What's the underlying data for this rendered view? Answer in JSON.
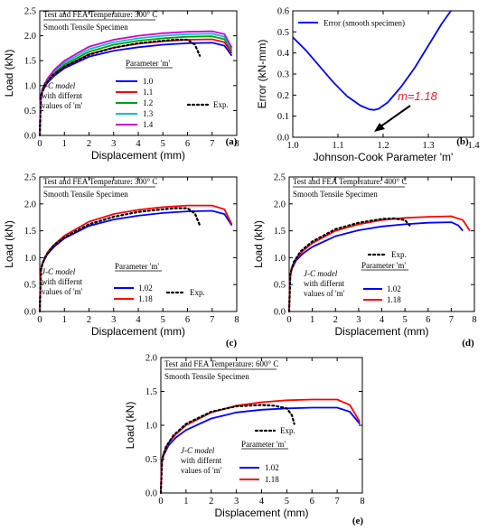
{
  "chart_data": [
    {
      "id": "a",
      "type": "line",
      "panel_label": "(a)",
      "xlabel": "Displacement (mm)",
      "ylabel": "Load (kN)",
      "xlim": [
        0,
        8
      ],
      "ylim": [
        0,
        2.5
      ],
      "xticks": [
        "0",
        "1",
        "2",
        "3",
        "4",
        "5",
        "6",
        "7",
        "8"
      ],
      "yticks": [
        "0.0",
        "0.5",
        "1.0",
        "1.5",
        "2.0",
        "2.5"
      ],
      "annotation_title": "Test and FEA Temperature: 300° C",
      "annotation_sub": "Smooth Tensile Specimen",
      "model_note": [
        "J-C model",
        "with differnt",
        "values of 'm'"
      ],
      "legend_title": "Parameter 'm'",
      "series": [
        {
          "name": "1.0",
          "color": "#0000ff",
          "x": [
            0,
            0.03,
            0.1,
            0.3,
            0.6,
            1,
            2,
            3,
            4,
            5,
            6,
            7,
            7.5,
            7.8
          ],
          "y": [
            0,
            0.7,
            0.88,
            1.05,
            1.2,
            1.35,
            1.58,
            1.7,
            1.77,
            1.82,
            1.85,
            1.86,
            1.8,
            1.6
          ]
        },
        {
          "name": "1.1",
          "color": "#ff0000",
          "x": [
            0,
            0.03,
            0.1,
            0.3,
            0.6,
            1,
            2,
            3,
            4,
            5,
            6,
            7,
            7.5,
            7.8
          ],
          "y": [
            0,
            0.7,
            0.89,
            1.07,
            1.23,
            1.38,
            1.63,
            1.76,
            1.84,
            1.89,
            1.92,
            1.93,
            1.87,
            1.65
          ]
        },
        {
          "name": "1.2",
          "color": "#00a000",
          "x": [
            0,
            0.03,
            0.1,
            0.3,
            0.6,
            1,
            2,
            3,
            4,
            5,
            6,
            7,
            7.5,
            7.8
          ],
          "y": [
            0,
            0.7,
            0.9,
            1.09,
            1.26,
            1.42,
            1.68,
            1.82,
            1.9,
            1.95,
            1.98,
            1.99,
            1.93,
            1.7
          ]
        },
        {
          "name": "1.3",
          "color": "#00c0d0",
          "x": [
            0,
            0.03,
            0.1,
            0.3,
            0.6,
            1,
            2,
            3,
            4,
            5,
            6,
            7,
            7.5,
            7.8
          ],
          "y": [
            0,
            0.7,
            0.91,
            1.11,
            1.29,
            1.46,
            1.73,
            1.87,
            1.95,
            2.0,
            2.03,
            2.04,
            1.98,
            1.73
          ]
        },
        {
          "name": "1.4",
          "color": "#d000d0",
          "x": [
            0,
            0.03,
            0.1,
            0.3,
            0.6,
            1,
            2,
            3,
            4,
            5,
            6,
            7,
            7.5,
            7.8
          ],
          "y": [
            0,
            0.7,
            0.92,
            1.13,
            1.32,
            1.5,
            1.78,
            1.92,
            2.0,
            2.05,
            2.08,
            2.09,
            2.03,
            1.76
          ]
        },
        {
          "name": "Exp.",
          "color": "#000000",
          "dashed": true,
          "x": [
            0,
            0.05,
            0.2,
            0.5,
            1,
            2,
            3,
            4,
            5,
            5.5,
            6,
            6.3,
            6.5
          ],
          "y": [
            0,
            0.8,
            1.0,
            1.2,
            1.38,
            1.62,
            1.76,
            1.85,
            1.9,
            1.92,
            1.92,
            1.82,
            1.6
          ]
        }
      ]
    },
    {
      "id": "b",
      "type": "line",
      "panel_label": "(b)",
      "xlabel": "Johnson-Cook Parameter 'm'",
      "ylabel": "Error (kN-mm)",
      "xlim": [
        1.0,
        1.4
      ],
      "ylim": [
        0,
        0.6
      ],
      "xticks": [
        "1.0",
        "1.1",
        "1.2",
        "1.3",
        "1.4"
      ],
      "yticks": [
        "0.0",
        "0.1",
        "0.2",
        "0.3",
        "0.4",
        "0.5",
        "0.6"
      ],
      "legend_entry": "Error (smooth specimen)",
      "optimum_label": "m=1.18",
      "series": [
        {
          "name": "Error (smooth specimen)",
          "color": "#0000ff",
          "x": [
            1.0,
            1.03,
            1.06,
            1.09,
            1.12,
            1.15,
            1.17,
            1.18,
            1.19,
            1.21,
            1.24,
            1.27,
            1.3,
            1.33,
            1.35
          ],
          "y": [
            0.475,
            0.41,
            0.335,
            0.26,
            0.195,
            0.15,
            0.132,
            0.13,
            0.135,
            0.165,
            0.24,
            0.33,
            0.435,
            0.54,
            0.6
          ]
        }
      ]
    },
    {
      "id": "c",
      "type": "line",
      "panel_label": "(c)",
      "xlabel": "Displacement (mm)",
      "ylabel": "Load (kN)",
      "xlim": [
        0,
        8
      ],
      "ylim": [
        0,
        2.5
      ],
      "xticks": [
        "0",
        "1",
        "2",
        "3",
        "4",
        "5",
        "6",
        "7",
        "8"
      ],
      "yticks": [
        "0.0",
        "0.5",
        "1.0",
        "1.5",
        "2.0",
        "2.5"
      ],
      "annotation_title": "Test and FEA Temperature: 300° C",
      "annotation_sub": "Smooth Tensile Specimen",
      "model_note": [
        "J-C model",
        "with differnt",
        "values of 'm'"
      ],
      "legend_title": "Parameter 'm'",
      "series": [
        {
          "name": "1.02",
          "color": "#0000ff",
          "x": [
            0,
            0.03,
            0.1,
            0.3,
            0.6,
            1,
            2,
            3,
            4,
            5,
            6,
            7,
            7.5,
            7.8
          ],
          "y": [
            0,
            0.7,
            0.88,
            1.06,
            1.21,
            1.36,
            1.59,
            1.71,
            1.78,
            1.83,
            1.86,
            1.87,
            1.81,
            1.6
          ]
        },
        {
          "name": "1.18",
          "color": "#ff0000",
          "x": [
            0,
            0.03,
            0.1,
            0.3,
            0.6,
            1,
            2,
            3,
            4,
            5,
            6,
            7,
            7.5,
            7.8
          ],
          "y": [
            0,
            0.7,
            0.9,
            1.09,
            1.25,
            1.41,
            1.67,
            1.81,
            1.89,
            1.94,
            1.97,
            1.97,
            1.9,
            1.62
          ]
        },
        {
          "name": "Exp.",
          "color": "#000000",
          "dashed": true,
          "x": [
            0,
            0.05,
            0.2,
            0.5,
            1,
            2,
            3,
            4,
            5,
            5.5,
            6,
            6.3,
            6.5
          ],
          "y": [
            0,
            0.8,
            1.0,
            1.2,
            1.38,
            1.62,
            1.76,
            1.85,
            1.9,
            1.92,
            1.92,
            1.82,
            1.6
          ]
        }
      ]
    },
    {
      "id": "d",
      "type": "line",
      "panel_label": "(d)",
      "xlabel": "Displacement (mm)",
      "ylabel": "Load (kN)",
      "xlim": [
        0,
        8
      ],
      "ylim": [
        0,
        2.5
      ],
      "xticks": [
        "0",
        "1",
        "2",
        "3",
        "4",
        "5",
        "6",
        "7",
        "8"
      ],
      "yticks": [
        "0.0",
        "0.5",
        "1.0",
        "1.5",
        "2.0",
        "2.5"
      ],
      "annotation_title": "Test and FEA Temperature: 400° C",
      "annotation_sub": "Smooth Tensile Specimen",
      "model_note": [
        "J-C model",
        "with differnt",
        "values of 'm'"
      ],
      "legend_title": "Parameter 'm'",
      "series": [
        {
          "name": "1.02",
          "color": "#0000ff",
          "x": [
            0,
            0.03,
            0.1,
            0.3,
            0.6,
            1,
            2,
            3,
            4,
            5,
            6,
            7,
            7.3,
            7.5
          ],
          "y": [
            0,
            0.6,
            0.78,
            0.95,
            1.08,
            1.2,
            1.4,
            1.51,
            1.58,
            1.62,
            1.65,
            1.66,
            1.6,
            1.5
          ]
        },
        {
          "name": "1.18",
          "color": "#ff0000",
          "x": [
            0,
            0.03,
            0.1,
            0.3,
            0.6,
            1,
            2,
            3,
            4,
            5,
            6,
            7,
            7.5,
            7.8
          ],
          "y": [
            0,
            0.62,
            0.81,
            0.99,
            1.13,
            1.27,
            1.5,
            1.62,
            1.7,
            1.74,
            1.76,
            1.77,
            1.7,
            1.5
          ]
        },
        {
          "name": "Exp.",
          "color": "#000000",
          "dashed": true,
          "x": [
            0,
            0.05,
            0.2,
            0.5,
            1,
            2,
            3,
            4,
            4.5,
            5,
            5.2
          ],
          "y": [
            0,
            0.7,
            0.92,
            1.12,
            1.3,
            1.53,
            1.65,
            1.72,
            1.73,
            1.7,
            1.6
          ]
        }
      ]
    },
    {
      "id": "e",
      "type": "line",
      "panel_label": "(e)",
      "xlabel": "Displacement (mm)",
      "ylabel": "Load (kN)",
      "xlim": [
        0,
        8
      ],
      "ylim": [
        0,
        2.0
      ],
      "xticks": [
        "0",
        "1",
        "2",
        "3",
        "4",
        "5",
        "6",
        "7",
        "8"
      ],
      "yticks": [
        "0.0",
        "0.5",
        "1.0",
        "1.5",
        "2.0"
      ],
      "annotation_title": "Test and FEA Temperature: 600° C",
      "annotation_sub": "Smooth Tensile Specimen",
      "model_note": [
        "J-C model",
        "with differnt",
        "values of 'm'"
      ],
      "legend_title": "Parameter 'm'",
      "series": [
        {
          "name": "1.02",
          "color": "#0000ff",
          "x": [
            0,
            0.03,
            0.1,
            0.3,
            0.6,
            1,
            2,
            3,
            4,
            5,
            6,
            7,
            7.5,
            7.9
          ],
          "y": [
            0,
            0.42,
            0.55,
            0.7,
            0.82,
            0.93,
            1.1,
            1.19,
            1.23,
            1.25,
            1.26,
            1.26,
            1.2,
            1.02
          ]
        },
        {
          "name": "1.18",
          "color": "#ff0000",
          "x": [
            0,
            0.03,
            0.1,
            0.3,
            0.6,
            1,
            2,
            3,
            4,
            5,
            6,
            7,
            7.5,
            7.9
          ],
          "y": [
            0,
            0.44,
            0.58,
            0.74,
            0.87,
            1.0,
            1.19,
            1.29,
            1.34,
            1.37,
            1.38,
            1.38,
            1.3,
            1.05
          ]
        },
        {
          "name": "Exp.",
          "color": "#000000",
          "dashed": true,
          "x": [
            0,
            0.05,
            0.2,
            0.5,
            1,
            2,
            3,
            4,
            4.5,
            5,
            5.2,
            5.3
          ],
          "y": [
            0,
            0.5,
            0.68,
            0.85,
            1.02,
            1.2,
            1.28,
            1.3,
            1.29,
            1.25,
            1.15,
            1.02
          ]
        }
      ]
    }
  ]
}
